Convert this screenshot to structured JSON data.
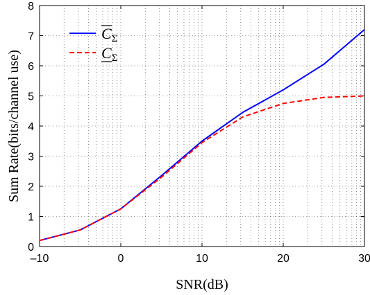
{
  "chart_data": {
    "type": "line",
    "xlabel": "SNR(dB)",
    "ylabel": "Sum Rate(bits/channel use)",
    "xlim": [
      -10,
      30
    ],
    "ylim": [
      0,
      8
    ],
    "x_ticks": [
      -10,
      0,
      10,
      20,
      30
    ],
    "x_tick_labels": [
      "–10",
      "0",
      "10",
      "20",
      "30"
    ],
    "y_ticks": [
      0,
      1,
      2,
      3,
      4,
      5,
      6,
      7,
      8
    ],
    "y_tick_labels": [
      "0",
      "1",
      "2",
      "3",
      "4",
      "5",
      "6",
      "7",
      "8"
    ],
    "grid": "dotted",
    "legend_position": "top-left",
    "x": [
      -10,
      -5,
      0,
      5,
      10,
      15,
      20,
      25,
      30
    ],
    "series": [
      {
        "name": "C",
        "name_subscript": "Σ",
        "bar": "over",
        "color": "#0000ff",
        "line_style": "solid",
        "values": [
          0.2,
          0.55,
          1.25,
          2.35,
          3.5,
          4.45,
          5.2,
          6.05,
          7.2
        ]
      },
      {
        "name": "C",
        "name_subscript": "Σ",
        "bar": "under",
        "color": "#ff0000",
        "line_style": "dashed",
        "values": [
          0.2,
          0.55,
          1.25,
          2.3,
          3.45,
          4.3,
          4.75,
          4.95,
          5.0
        ]
      }
    ]
  }
}
